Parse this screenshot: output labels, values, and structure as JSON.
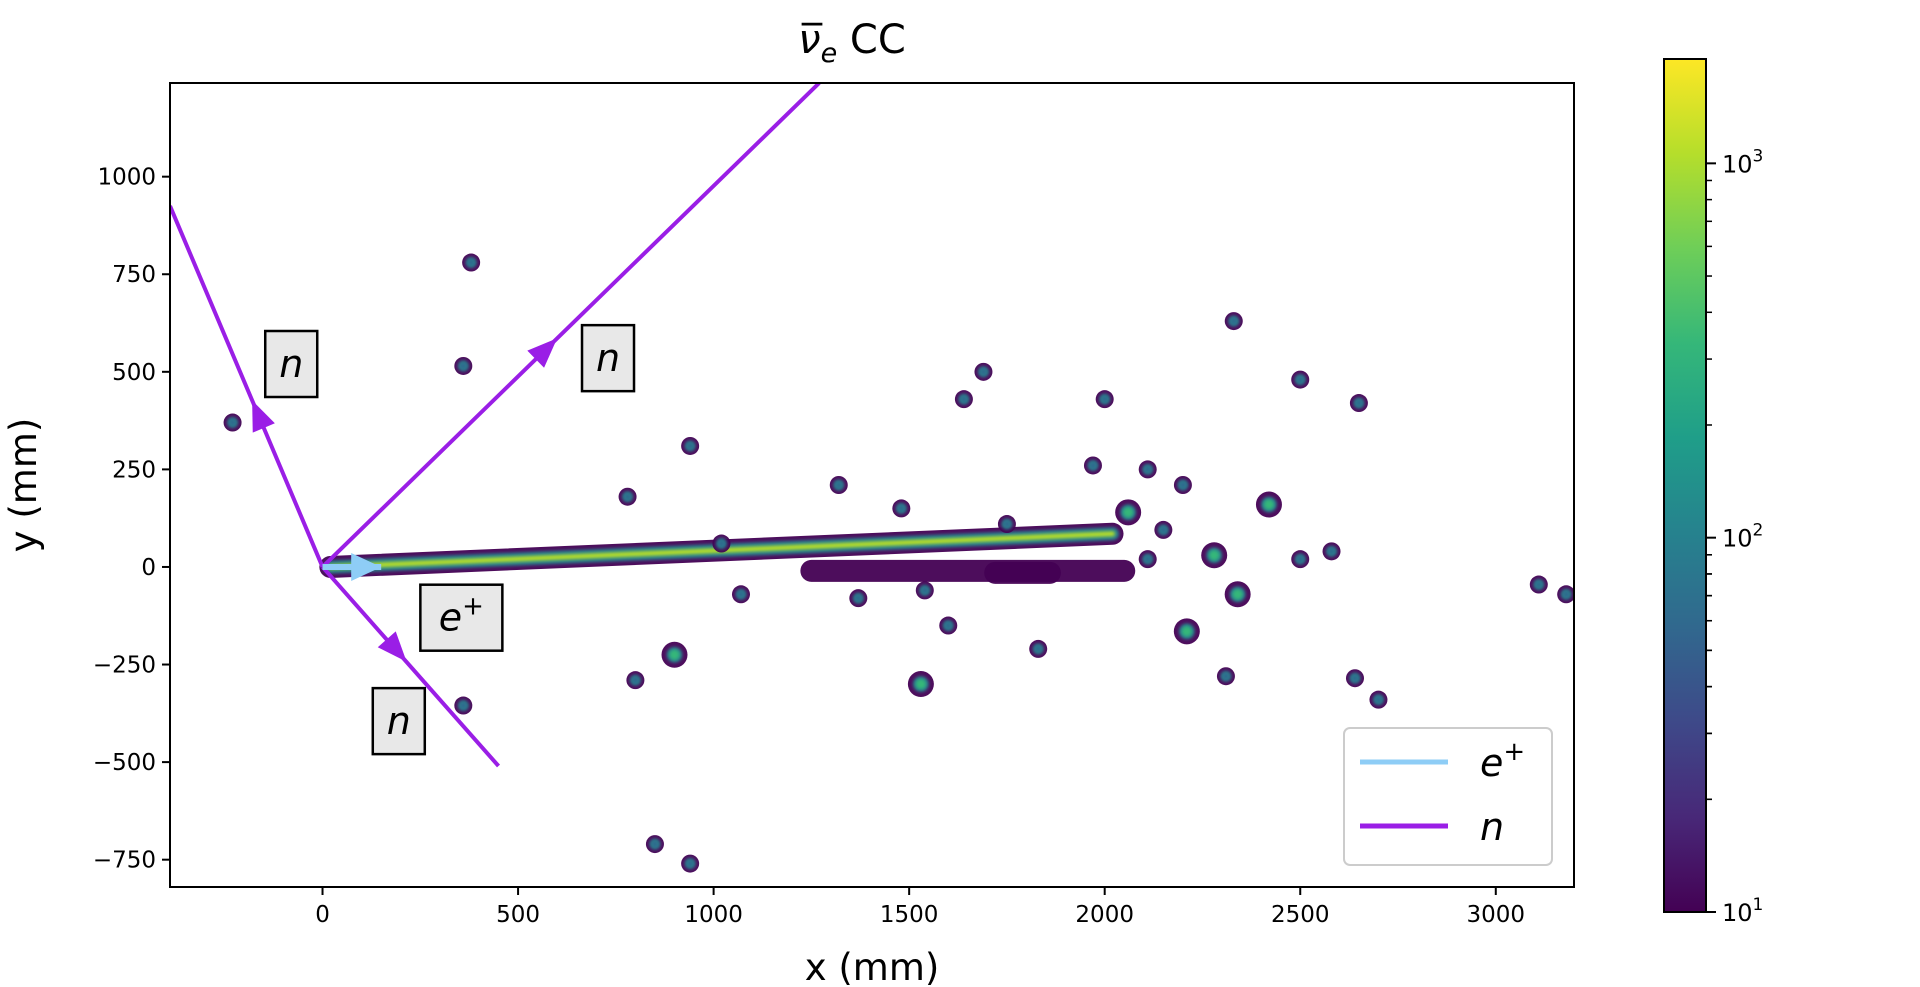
{
  "chart_data": {
    "type": "heatmap",
    "title": "ν̅e CC",
    "title_main": "ν̅",
    "title_sub": "e",
    "title_rest": " CC",
    "xlabel": "x (mm)",
    "ylabel": "y (mm)",
    "xlim": [
      -390,
      3200
    ],
    "ylim": [
      -820,
      1240
    ],
    "xticks": [
      0,
      500,
      1000,
      1500,
      2000,
      2500,
      3000
    ],
    "xtick_labels": [
      "0",
      "500",
      "1000",
      "1500",
      "2000",
      "2500",
      "3000"
    ],
    "yticks": [
      1000,
      750,
      500,
      250,
      0,
      -250,
      -500,
      -750
    ],
    "ytick_labels": [
      "1000",
      "750",
      "500",
      "250",
      "0",
      "−250",
      "−500",
      "−750"
    ],
    "colorbar": {
      "scale": "log",
      "range": [
        10,
        1900
      ],
      "colormap": "viridis",
      "major_ticks": [
        10,
        100,
        1000
      ],
      "major_labels": [
        {
          "base": "10",
          "exp": "1"
        },
        {
          "base": "10",
          "exp": "2"
        },
        {
          "base": "10",
          "exp": "3"
        }
      ]
    },
    "legend": {
      "placement": "lower-right",
      "entries": [
        {
          "name": "e",
          "sup": "+",
          "color": "#8ecdf6"
        },
        {
          "name": "n",
          "sup": "",
          "color": "#9a1ee6"
        }
      ]
    },
    "tracks": [
      {
        "particle": "n",
        "color": "#9a1ee6",
        "points": [
          [
            0,
            0
          ],
          [
            1270,
            1240
          ]
        ],
        "arrow_at": [
          600,
          586
        ],
        "label": "n",
        "label_at": [
          730,
          535
        ]
      },
      {
        "particle": "n",
        "color": "#9a1ee6",
        "points": [
          [
            0,
            0
          ],
          [
            -390,
            925
          ]
        ],
        "arrow_at": [
          -180,
          427
        ],
        "label": "n",
        "label_at": [
          -80,
          520
        ]
      },
      {
        "particle": "n",
        "color": "#9a1ee6",
        "points": [
          [
            0,
            0
          ],
          [
            450,
            -510
          ]
        ],
        "arrow_at": [
          215,
          -243
        ],
        "label": "n",
        "label_at": [
          195,
          -395
        ]
      },
      {
        "particle": "e+",
        "color": "#8ecdf6",
        "points": [
          [
            0,
            0
          ],
          [
            150,
            0
          ]
        ],
        "arrow_at": [
          150,
          0
        ],
        "label": "e",
        "label_sup": "+",
        "label_at": [
          355,
          -130
        ]
      }
    ],
    "deposits": [
      {
        "x": [
          20,
          2020
        ],
        "y": [
          0,
          85
        ],
        "level": "high",
        "kind": "streak"
      },
      {
        "x": [
          1250,
          2050
        ],
        "y": [
          -10,
          -10
        ],
        "level": "mid",
        "kind": "streak"
      },
      {
        "x": [
          1720,
          1860
        ],
        "y": [
          -15,
          -15
        ],
        "level": "mid",
        "kind": "streak"
      },
      {
        "x": 2060,
        "y": 140,
        "level": "mid"
      },
      {
        "x": 900,
        "y": -225,
        "level": "mid"
      },
      {
        "x": 1530,
        "y": -300,
        "level": "mid"
      },
      {
        "x": 2210,
        "y": -165,
        "level": "mid"
      },
      {
        "x": 2420,
        "y": 160,
        "level": "mid"
      },
      {
        "x": 2280,
        "y": 30,
        "level": "mid"
      },
      {
        "x": 2340,
        "y": -70,
        "level": "mid"
      },
      {
        "x": 1750,
        "y": 110,
        "level": "low"
      },
      {
        "x": 1640,
        "y": 430,
        "level": "low"
      },
      {
        "x": 1690,
        "y": 500,
        "level": "low"
      },
      {
        "x": 2640,
        "y": -285,
        "level": "low"
      },
      {
        "x": 2700,
        "y": -340,
        "level": "low"
      },
      {
        "x": 3110,
        "y": -45,
        "level": "low"
      },
      {
        "x": 3180,
        "y": -70,
        "level": "low"
      },
      {
        "x": 2650,
        "y": 420,
        "level": "low"
      },
      {
        "x": 2500,
        "y": 480,
        "level": "low"
      },
      {
        "x": 2110,
        "y": 250,
        "level": "low"
      },
      {
        "x": 2200,
        "y": 210,
        "level": "low"
      },
      {
        "x": 2000,
        "y": 430,
        "level": "low"
      },
      {
        "x": 1970,
        "y": 260,
        "level": "low"
      },
      {
        "x": 1540,
        "y": -60,
        "level": "low"
      },
      {
        "x": 1370,
        "y": -80,
        "level": "low"
      },
      {
        "x": 1020,
        "y": 60,
        "level": "low"
      },
      {
        "x": 1070,
        "y": -70,
        "level": "low"
      },
      {
        "x": 940,
        "y": 310,
        "level": "low"
      },
      {
        "x": 780,
        "y": 180,
        "level": "low"
      },
      {
        "x": 360,
        "y": 515,
        "level": "low"
      },
      {
        "x": 380,
        "y": 780,
        "level": "low"
      },
      {
        "x": 800,
        "y": -290,
        "level": "low"
      },
      {
        "x": 360,
        "y": -355,
        "level": "low"
      },
      {
        "x": -230,
        "y": 370,
        "level": "low"
      },
      {
        "x": 2110,
        "y": 20,
        "level": "low"
      },
      {
        "x": 2150,
        "y": 95,
        "level": "low"
      },
      {
        "x": 2330,
        "y": 630,
        "level": "low"
      },
      {
        "x": 2500,
        "y": 20,
        "level": "low"
      },
      {
        "x": 2580,
        "y": 40,
        "level": "low"
      },
      {
        "x": 850,
        "y": -710,
        "level": "low"
      },
      {
        "x": 940,
        "y": -760,
        "level": "low"
      },
      {
        "x": 1600,
        "y": -150,
        "level": "low"
      },
      {
        "x": 1830,
        "y": -210,
        "level": "low"
      },
      {
        "x": 2310,
        "y": -280,
        "level": "low"
      },
      {
        "x": 1480,
        "y": 150,
        "level": "low"
      },
      {
        "x": 1320,
        "y": 210,
        "level": "low"
      }
    ]
  }
}
